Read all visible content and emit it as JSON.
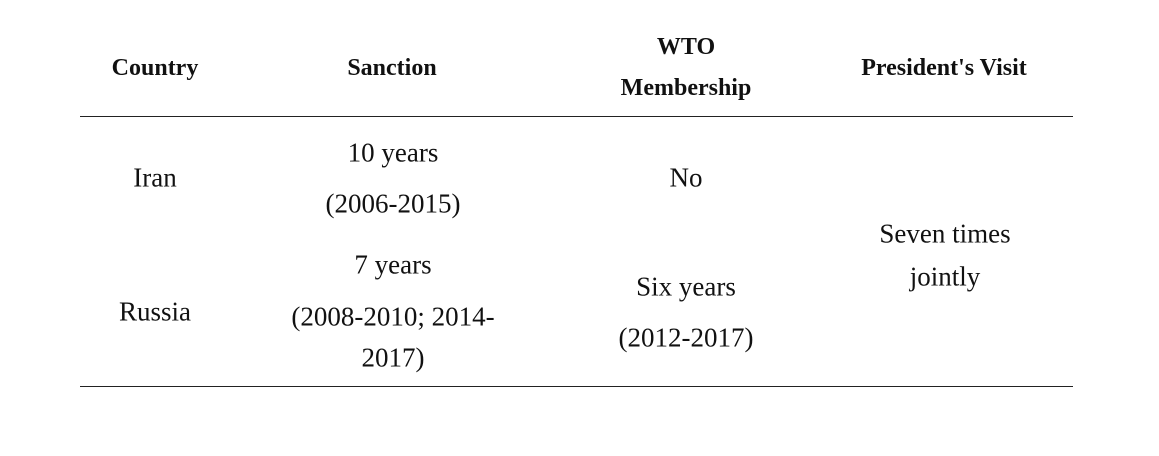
{
  "table": {
    "header": [
      [
        "Country"
      ],
      [
        "Sanction"
      ],
      [
        "WTO",
        "Membership"
      ],
      [
        "President's Visit"
      ]
    ],
    "rows": [
      [
        [
          "Iran"
        ],
        [
          "10 years",
          "(2006-2015)"
        ],
        [
          "No"
        ]
      ],
      [
        [
          "Russia"
        ],
        [
          "7 years",
          "(2008-2010; 2014-",
          "2017)"
        ],
        [
          "Six years",
          "(2012-2017)"
        ]
      ]
    ],
    "president_visit": [
      "Seven times",
      "jointly"
    ]
  }
}
